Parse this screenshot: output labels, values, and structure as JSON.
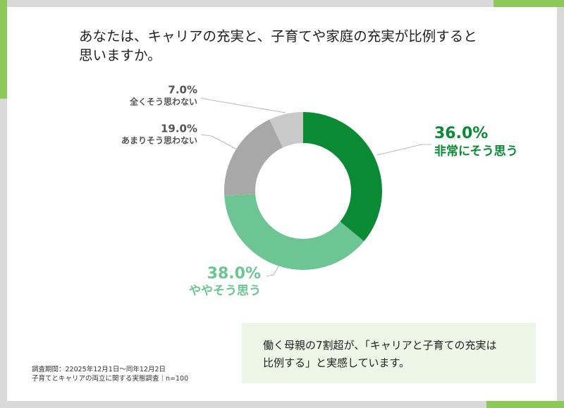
{
  "chart_data": {
    "type": "pie",
    "donut": true,
    "title": "あなたは、キャリアの充実と、子育てや家庭の充実が比例すると思いますか。",
    "categories": [
      "非常にそう思う",
      "ややそう思う",
      "あまりそう思わない",
      "全くそう思わない"
    ],
    "values": [
      36.0,
      38.0,
      19.0,
      7.0
    ],
    "value_labels": [
      "36.0%",
      "38.0%",
      "19.0%",
      "7.0%"
    ],
    "colors": [
      "#0b8a36",
      "#6cc593",
      "#a8a8a8",
      "#c9c9c9"
    ]
  },
  "callout": {
    "text": "働く母親の7割超が、「キャリアと子育ての充実は比例する」と実感しています。"
  },
  "footnote": {
    "lines": [
      "調査期間：22025年12月1日～同年12月2日",
      "子育てとキャリアの両立に関する実態調査｜n=100"
    ]
  }
}
